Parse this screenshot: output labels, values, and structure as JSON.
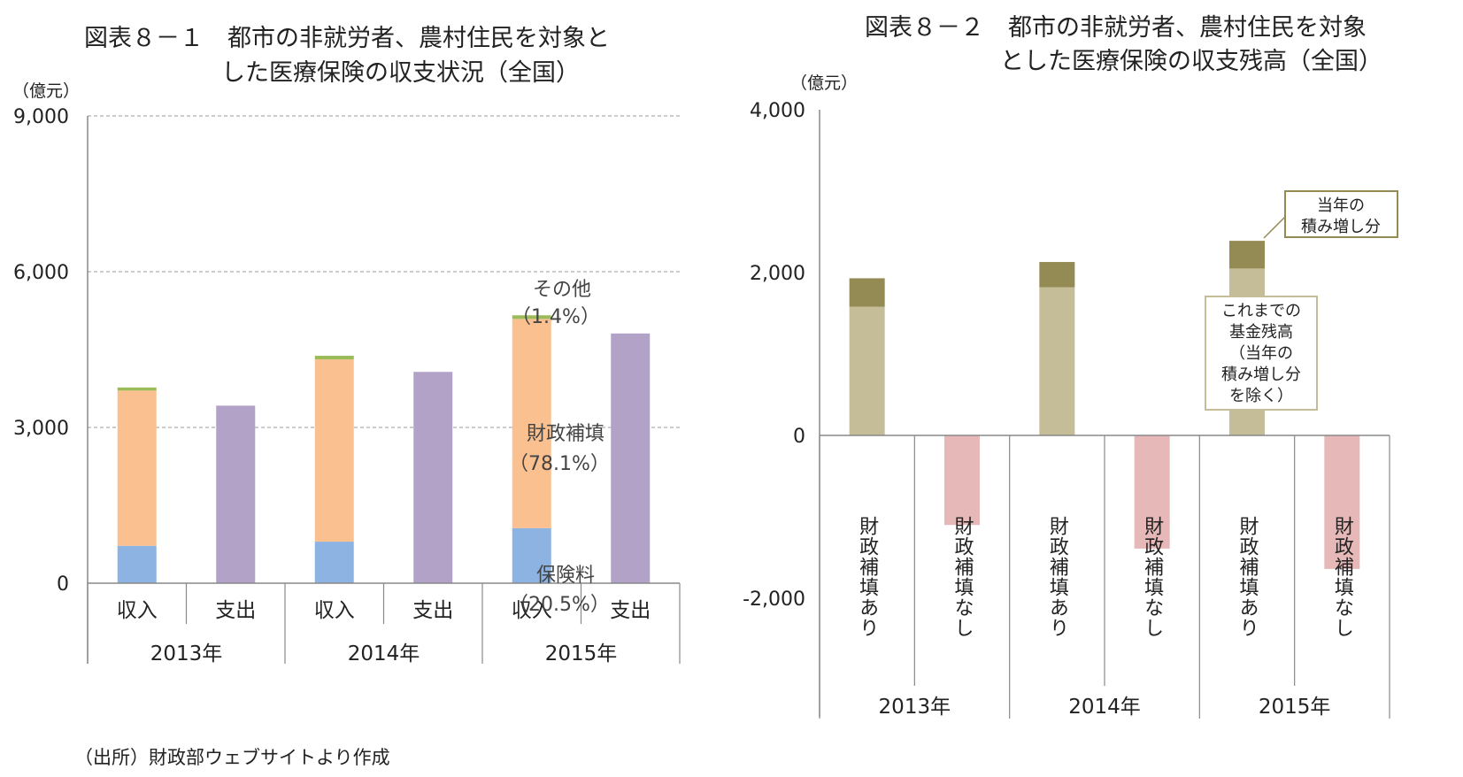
{
  "source": "（出所）財政部ウェブサイトより作成",
  "colors": {
    "insurance": "#8db3e2",
    "subsidy": "#fac090",
    "other": "#9bbb59",
    "expenditure": "#b3a2c7",
    "cumulative": "#c4bd97",
    "annual_increase": "#948a54",
    "no_subsidy": "#e6b9b8",
    "grid": "#9a9a9a",
    "axis": "#888888"
  },
  "chart_data": [
    {
      "id": "fig8-1",
      "type": "bar",
      "stacked": true,
      "title_lines": [
        "図表８－１　都市の非就労者、農村住民を対象と",
        "した医療保険の収支状況（全国）"
      ],
      "unit": "（億元）",
      "ylim": [
        0,
        9000
      ],
      "yticks": [
        0,
        3000,
        6000,
        9000
      ],
      "ytick_labels": [
        "0",
        "3,000",
        "6,000",
        "9,000"
      ],
      "grid": "dashed",
      "years": [
        "2013年",
        "2014年",
        "2015年"
      ],
      "categories": [
        "収入",
        "支出",
        "収入",
        "支出",
        "収入",
        "支出"
      ],
      "series": [
        {
          "key": "insurance",
          "name": "保険料",
          "values": [
            720,
            0,
            800,
            0,
            1060,
            0
          ]
        },
        {
          "key": "subsidy",
          "name": "財政補填",
          "values": [
            2990,
            0,
            3510,
            0,
            4030,
            0
          ]
        },
        {
          "key": "other",
          "name": "その他",
          "values": [
            60,
            0,
            70,
            0,
            70,
            0
          ]
        },
        {
          "key": "expenditure",
          "name": "支出",
          "values": [
            0,
            3420,
            0,
            4070,
            0,
            4810
          ]
        }
      ],
      "annotations": [
        {
          "lines": [
            "その他",
            "（1.4%）"
          ]
        },
        {
          "lines": [
            "財政補填",
            "（78.1%）"
          ]
        },
        {
          "lines": [
            "保険料",
            "（20.5%）"
          ]
        }
      ]
    },
    {
      "id": "fig8-2",
      "type": "bar",
      "stacked": true,
      "title_lines": [
        "図表８－２　都市の非就労者、農村住民を対象",
        "とした医療保険の収支残高（全国）"
      ],
      "unit": "（億元）",
      "ylim": [
        -2000,
        4000
      ],
      "yticks": [
        -2000,
        0,
        2000,
        4000
      ],
      "ytick_labels": [
        "-2,000",
        "0",
        "2,000",
        "4,000"
      ],
      "grid": "none",
      "years": [
        "2013年",
        "2014年",
        "2015年"
      ],
      "categories": [
        "財政補填あり",
        "財政補填なし",
        "財政補填あり",
        "財政補填なし",
        "財政補填あり",
        "財政補填なし"
      ],
      "series": [
        {
          "key": "cumulative",
          "name": "これまでの基金残高（当年の積み増し分を除く）",
          "values": [
            1580,
            0,
            1820,
            0,
            2050,
            0
          ]
        },
        {
          "key": "annual_increase",
          "name": "当年の積み増し分",
          "values": [
            350,
            0,
            310,
            0,
            340,
            0
          ]
        },
        {
          "key": "no_subsidy",
          "name": "財政補填なし",
          "values": [
            0,
            -1100,
            0,
            -1390,
            0,
            -1640
          ]
        }
      ],
      "callouts": [
        {
          "lines": [
            "当年の",
            "積み増し分"
          ]
        },
        {
          "lines": [
            "これまでの",
            "基金残高",
            "（当年の",
            "積み増し分",
            "を除く）"
          ]
        }
      ]
    }
  ]
}
